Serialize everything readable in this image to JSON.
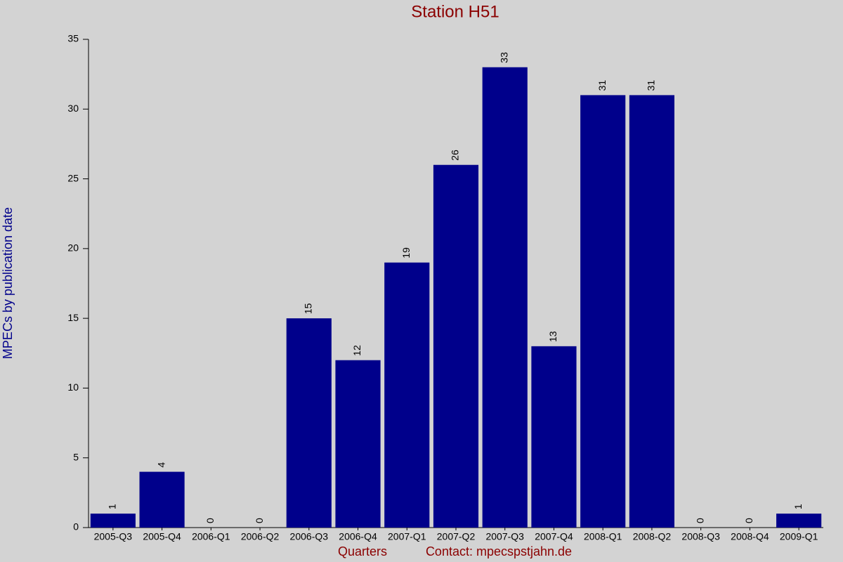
{
  "chart_data": {
    "type": "bar",
    "title": "Station H51",
    "y_label": "MPECs by publication date",
    "x_label": "Quarters",
    "annotation": "Contact: mpecspstjahn.de",
    "categories": [
      "2005-Q3",
      "2005-Q4",
      "2006-Q1",
      "2006-Q2",
      "2006-Q3",
      "2006-Q4",
      "2007-Q1",
      "2007-Q2",
      "2007-Q3",
      "2007-Q4",
      "2008-Q1",
      "2008-Q2",
      "2008-Q3",
      "2008-Q4",
      "2009-Q1"
    ],
    "values": [
      1,
      4,
      0,
      0,
      15,
      12,
      19,
      26,
      33,
      13,
      31,
      31,
      0,
      0,
      1
    ],
    "color": "#00008b",
    "ylim": [
      0,
      35
    ],
    "yticks": [
      0,
      5,
      10,
      15,
      20,
      25,
      30,
      35
    ],
    "grid": false
  }
}
